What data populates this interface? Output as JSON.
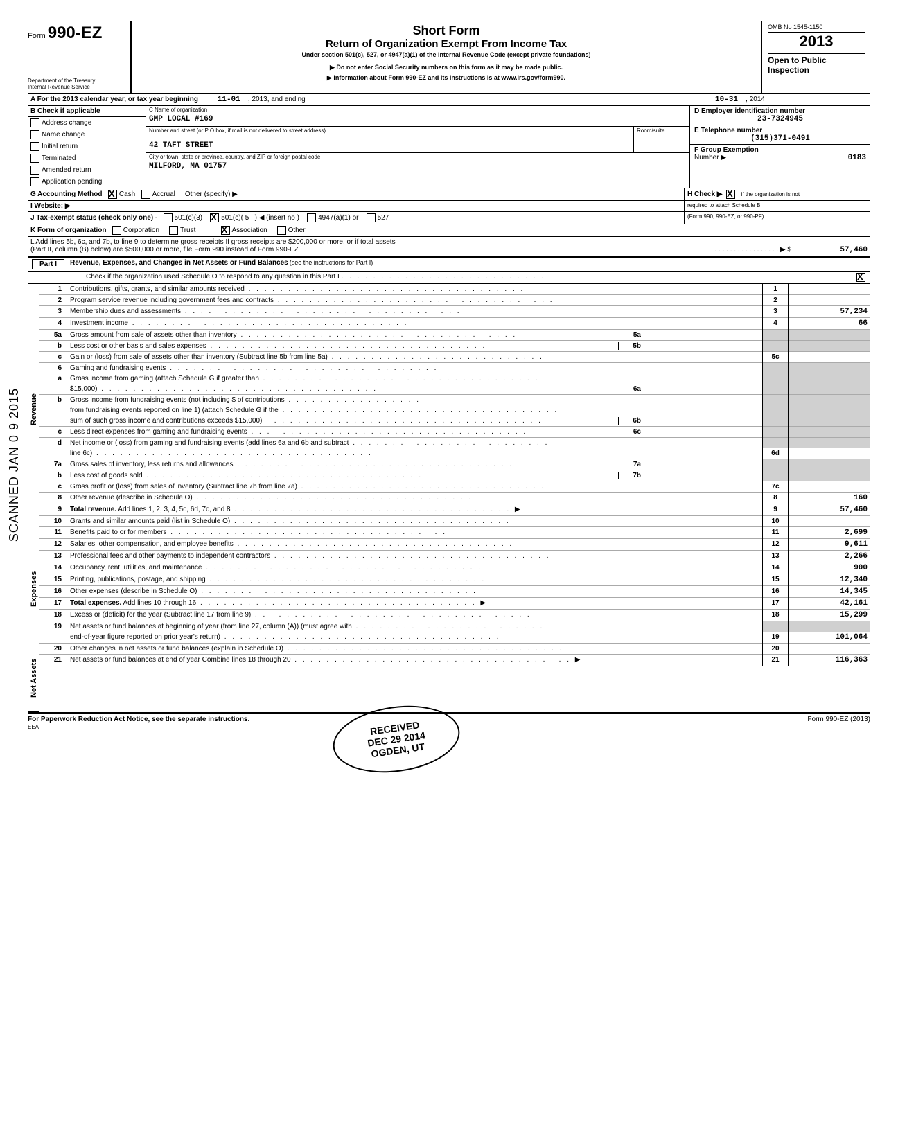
{
  "header": {
    "form_prefix": "Form",
    "form_number": "990-EZ",
    "dept": "Department of the Treasury",
    "irs": "Internal Revenue Service",
    "title1": "Short Form",
    "title2": "Return of Organization Exempt From Income Tax",
    "subtitle": "Under section 501(c), 527, or 4947(a)(1) of the Internal Revenue Code (except private foundations)",
    "note1": "▶  Do not enter Social Security numbers on this form as it may be made public.",
    "note2": "▶  Information about Form 990-EZ and its instructions is at www.irs.gov/form990.",
    "omb": "OMB No 1545-1150",
    "year": "2013",
    "open": "Open to Public",
    "inspection": "Inspection"
  },
  "topline": {
    "a_label": "A  For the 2013 calendar year, or tax year beginning",
    "begin": "11-01",
    "mid": ", 2013, and ending",
    "end": "10-31",
    "endyear": ", 2014"
  },
  "block_b": {
    "label": "B  Check if applicable",
    "items": [
      "Address change",
      "Name change",
      "Initial return",
      "Terminated",
      "Amended return",
      "Application pending"
    ]
  },
  "block_c": {
    "name_label": "C  Name of organization",
    "name": "GMP LOCAL #169",
    "addr_label": "Number and street (or P O box, if mail is not delivered to street address)",
    "room_label": "Room/suite",
    "addr": "42 TAFT STREET",
    "city_label": "City or town, state or province, country, and ZIP or foreign postal code",
    "city": "MILFORD, MA 01757"
  },
  "block_d": {
    "label": "D  Employer identification number",
    "value": "23-7324945"
  },
  "block_e": {
    "label": "E  Telephone number",
    "value": "(315)371-0491"
  },
  "block_f": {
    "label": "F  Group Exemption",
    "label2": "Number  ▶",
    "value": "0183"
  },
  "line_g": {
    "label": "G    Accounting Method",
    "cash": "Cash",
    "accrual": "Accrual",
    "other": "Other (specify) ▶",
    "h_label": "H  Check ▶",
    "h_text": "if the organization is not",
    "h_text2": "required to attach Schedule B",
    "h_text3": "(Form 990, 990-EZ, or 990-PF)"
  },
  "line_i": {
    "label": "I     Website:  ▶"
  },
  "line_j": {
    "label": "J   Tax-exempt status (check only one) -",
    "o1": "501(c)(3)",
    "o2": "501(c)( 5",
    "o2p": ")  ◀ (insert no )",
    "o3": "4947(a)(1) or",
    "o4": "527"
  },
  "line_k": {
    "label": "K  Form of organization",
    "o1": "Corporation",
    "o2": "Trust",
    "o3": "Association",
    "o4": "Other"
  },
  "line_l": {
    "text1": "L  Add lines 5b, 6c, and 7b, to line 9 to determine gross receipts  If gross receipts are $200,000 or more, or if total assets",
    "text2": "(Part II, column (B) below) are $500,000 or more, file Form 990 instead of Form 990-EZ",
    "dots": ". . . . . . . . . . . . . . . . .  ▶ $",
    "value": "57,460"
  },
  "part1": {
    "title": "Part I",
    "heading": "Revenue, Expenses, and Changes in Net Assets or Fund Balances",
    "note": "(see the instructions for Part I)",
    "check_line": "Check if the organization used Schedule O to respond to any question in this Part I"
  },
  "sections": {
    "revenue": "Revenue",
    "expenses": "Expenses",
    "netassets": "Net Assets"
  },
  "lines": [
    {
      "n": "1",
      "t": "Contributions, gifts, grants, and similar amounts received",
      "box": "1",
      "amt": ""
    },
    {
      "n": "2",
      "t": "Program service revenue including government fees and contracts",
      "box": "2",
      "amt": ""
    },
    {
      "n": "3",
      "t": "Membership dues and assessments",
      "box": "3",
      "amt": "57,234"
    },
    {
      "n": "4",
      "t": "Investment income",
      "box": "4",
      "amt": "66"
    },
    {
      "n": "5a",
      "t": "Gross amount from sale of assets other than inventory",
      "ibox": "5a"
    },
    {
      "n": "b",
      "t": "Less  cost or other basis and sales expenses",
      "ibox": "5b"
    },
    {
      "n": "c",
      "t": "Gain or (loss) from sale of assets other than inventory (Subtract line 5b from line 5a)",
      "box": "5c",
      "amt": ""
    },
    {
      "n": "6",
      "t": "Gaming and fundraising events"
    },
    {
      "n": "a",
      "t": "Gross income from gaming (attach Schedule G if greater than"
    },
    {
      "n": "",
      "t": "$15,000)",
      "ibox": "6a"
    },
    {
      "n": "b",
      "t": "Gross income from fundraising events (not including $                                     of contributions"
    },
    {
      "n": "",
      "t": "from fundraising events reported on line 1) (attach Schedule G if the"
    },
    {
      "n": "",
      "t": "sum of such gross income and contributions exceeds $15,000)",
      "ibox": "6b"
    },
    {
      "n": "c",
      "t": "Less  direct expenses from gaming and fundraising events",
      "ibox": "6c"
    },
    {
      "n": "d",
      "t": "Net income or (loss) from gaming and fundraising events (add lines 6a and 6b and subtract"
    },
    {
      "n": "",
      "t": "line 6c)",
      "box": "6d",
      "amt": ""
    },
    {
      "n": "7a",
      "t": "Gross sales of inventory, less returns and allowances",
      "ibox": "7a"
    },
    {
      "n": "b",
      "t": "Less  cost of goods sold",
      "ibox": "7b"
    },
    {
      "n": "c",
      "t": "Gross profit or (loss) from sales of inventory (Subtract line 7b from line 7a)",
      "box": "7c",
      "amt": ""
    },
    {
      "n": "8",
      "t": "Other revenue (describe in Schedule O)",
      "box": "8",
      "amt": "160"
    },
    {
      "n": "9",
      "t": "Total revenue.  Add lines 1, 2, 3, 4, 5c, 6d, 7c, and 8",
      "box": "9",
      "amt": "57,460",
      "bold": true,
      "arrow": true
    },
    {
      "n": "10",
      "t": "Grants and similar amounts paid (list in Schedule O)",
      "box": "10",
      "amt": ""
    },
    {
      "n": "11",
      "t": "Benefits paid to or for members",
      "box": "11",
      "amt": "2,699"
    },
    {
      "n": "12",
      "t": "Salaries, other compensation, and employee benefits",
      "box": "12",
      "amt": "9,611"
    },
    {
      "n": "13",
      "t": "Professional fees and other payments to independent contractors",
      "box": "13",
      "amt": "2,266"
    },
    {
      "n": "14",
      "t": "Occupancy, rent, utilities, and maintenance",
      "box": "14",
      "amt": "900"
    },
    {
      "n": "15",
      "t": "Printing, publications, postage, and shipping",
      "box": "15",
      "amt": "12,340"
    },
    {
      "n": "16",
      "t": "Other expenses (describe in Schedule O)",
      "box": "16",
      "amt": "14,345"
    },
    {
      "n": "17",
      "t": "Total expenses.  Add lines 10 through 16",
      "box": "17",
      "amt": "42,161",
      "bold": true,
      "arrow": true
    },
    {
      "n": "18",
      "t": "Excess or (deficit) for the year (Subtract line 17 from line 9)",
      "box": "18",
      "amt": "15,299"
    },
    {
      "n": "19",
      "t": "Net assets or fund balances at beginning of year (from line 27, column (A)) (must agree with"
    },
    {
      "n": "",
      "t": "end-of-year figure reported on prior year's return)",
      "box": "19",
      "amt": "101,064"
    },
    {
      "n": "20",
      "t": "Other changes in net assets or fund balances (explain in Schedule O)",
      "box": "20",
      "amt": ""
    },
    {
      "n": "21",
      "t": "Net assets or fund balances at end of year  Combine lines 18 through 20",
      "box": "21",
      "amt": "116,363",
      "arrow": true
    }
  ],
  "footer": {
    "left": "For Paperwork Reduction Act Notice, see the separate instructions.",
    "eea": "EEA",
    "right": "Form 990-EZ (2013)"
  },
  "stamp": {
    "received": "RECEIVED",
    "date": "DEC 29 2014",
    "place": "OGDEN, UT"
  },
  "scanned": "SCANNED JAN 0 9 2015",
  "colors": {
    "text": "#000000",
    "bg": "#ffffff",
    "shade": "#d0d0d0"
  }
}
